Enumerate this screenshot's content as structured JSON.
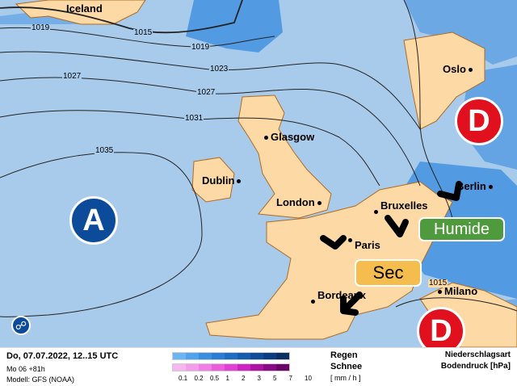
{
  "map": {
    "colors": {
      "ocean": "#a9cbeb",
      "land": "#fdd9a5",
      "border": "#b06a20",
      "precip": "#3d8fe0",
      "high": "#0b4b9a",
      "low": "#e0101e",
      "dry": "#f4bd4e",
      "wet": "#4e9a3c"
    },
    "cities": [
      "Iceland",
      "Oslo",
      "Glasgow",
      "Dublin",
      "London",
      "Bruxelles",
      "Paris",
      "Berlin",
      "Bordeaux",
      "Milano"
    ],
    "isobars": [
      "1019",
      "1015",
      "1019",
      "1023",
      "1027",
      "1027",
      "1031",
      "1035",
      "1015"
    ],
    "centers": {
      "high": "A",
      "low1": "D",
      "low2": "D"
    },
    "badges": {
      "wet": "Humide",
      "dry": "Sec"
    },
    "compass_icon": "globe-icon"
  },
  "legend": {
    "date": "Do, 07.07.2022, 12..15 UTC",
    "run": "Mo 06 +81h",
    "model": "Modell: GFS (NOAA)",
    "rain_label": "Regen",
    "snow_label": "Schnee",
    "unit": "[ mm / h ]",
    "ticks": [
      "0.1",
      "0.2",
      "0.5",
      "1",
      "2",
      "3",
      "5",
      "7",
      "10"
    ],
    "rain_colors": [
      "#6cb4f4",
      "#4fa2ee",
      "#3a8ee2",
      "#2a7cd6",
      "#1f6cc4",
      "#165cb0",
      "#104c9a",
      "#0c3d80",
      "#0a2f60"
    ],
    "snow_colors": [
      "#f8b6f0",
      "#f59cec",
      "#f07ee6",
      "#ea5ede",
      "#e240d4",
      "#cf22c2",
      "#ae12a4",
      "#8a0a86",
      "#6a0668"
    ],
    "type_label": "Niederschlagsart",
    "pressure_label": "Bodendruck [hPa]"
  }
}
